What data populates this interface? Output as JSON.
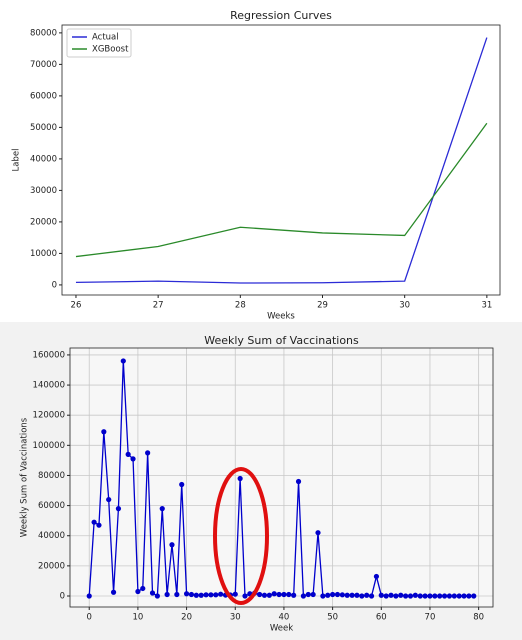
{
  "chart_data": [
    {
      "type": "line",
      "title": "Regression Curves",
      "x_label": "Weeks",
      "y_label": "Label",
      "x": [
        26,
        27,
        28,
        29,
        30,
        31
      ],
      "series": [
        {
          "name": "Actual",
          "color": "#2b2bd6",
          "values": [
            800,
            1200,
            600,
            700,
            1200,
            78500
          ]
        },
        {
          "name": "XGBoost",
          "color": "#2a8a2a",
          "values": [
            9000,
            12200,
            18300,
            16500,
            15700,
            51300
          ]
        }
      ],
      "xlim": [
        25.83,
        31.16
      ],
      "xticks": [
        26,
        27,
        28,
        29,
        30,
        31
      ],
      "ylim": [
        -3200,
        82500
      ],
      "yticks": [
        0,
        10000,
        20000,
        30000,
        40000,
        50000,
        60000,
        70000,
        80000
      ],
      "grid": false,
      "legend": "upper left"
    },
    {
      "type": "line",
      "title": "Weekly Sum of Vaccinations",
      "x_label": "Week",
      "y_label": "Weekly Sum of Vaccinations",
      "x": [
        0,
        1,
        2,
        3,
        4,
        5,
        6,
        7,
        8,
        9,
        10,
        11,
        12,
        13,
        14,
        15,
        16,
        17,
        18,
        19,
        20,
        21,
        22,
        23,
        24,
        25,
        26,
        27,
        28,
        29,
        30,
        31,
        32,
        33,
        34,
        35,
        36,
        37,
        38,
        39,
        40,
        41,
        42,
        43,
        44,
        45,
        46,
        47,
        48,
        49,
        50,
        51,
        52,
        53,
        54,
        55,
        56,
        57,
        58,
        59,
        60,
        61,
        62,
        63,
        64,
        65,
        66,
        67,
        68,
        69,
        70,
        71,
        72,
        73,
        74,
        75,
        76,
        77,
        78,
        79
      ],
      "series": [
        {
          "name": "Weekly Sum of Vaccinations",
          "color": "#0000cc",
          "marker": true,
          "values": [
            0,
            49000,
            47000,
            109000,
            64000,
            2500,
            58000,
            156000,
            94000,
            91000,
            3000,
            5000,
            95000,
            2000,
            0,
            58000,
            1000,
            34000,
            1000,
            74000,
            1500,
            1000,
            500,
            500,
            800,
            800,
            800,
            1200,
            600,
            700,
            1200,
            78000,
            0,
            1500,
            2000,
            1000,
            500,
            500,
            1500,
            1000,
            1000,
            1000,
            500,
            76000,
            0,
            1000,
            1000,
            42000,
            0,
            500,
            1000,
            1000,
            800,
            500,
            500,
            500,
            0,
            500,
            0,
            13000,
            500,
            0,
            500,
            0,
            500,
            0,
            0,
            500,
            0,
            0,
            0,
            0,
            0,
            0,
            0,
            0,
            0,
            0,
            0,
            0
          ]
        }
      ],
      "xlim": [
        -3.95,
        82.95
      ],
      "xticks": [
        0,
        10,
        20,
        30,
        40,
        50,
        60,
        70,
        80
      ],
      "ylim": [
        -7300,
        164600
      ],
      "yticks": [
        0,
        20000,
        40000,
        60000,
        80000,
        100000,
        120000,
        140000,
        160000
      ],
      "grid": true
    }
  ]
}
